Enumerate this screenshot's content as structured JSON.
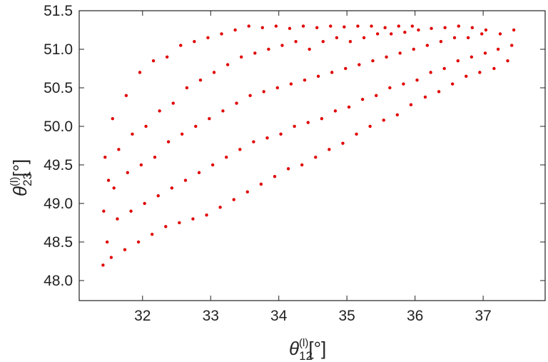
{
  "chart_data": {
    "type": "scatter",
    "xlabel": {
      "base": "θ",
      "sub": "12",
      "sup": "(l)",
      "unit": "[°]"
    },
    "ylabel": {
      "base": "θ",
      "sub": "23",
      "sup": "(l)",
      "unit": "[°]"
    },
    "color": "#e00000",
    "xlim": [
      31.07,
      37.91
    ],
    "ylim": [
      47.74,
      51.5
    ],
    "xticks": [
      32,
      33,
      34,
      35,
      36,
      37
    ],
    "yticks": [
      {
        "value": 48.0,
        "label": "48.0"
      },
      48.5,
      {
        "value": 49.0,
        "label": "49.0"
      },
      49.5,
      {
        "value": 50.0,
        "label": "50.0"
      },
      50.5,
      {
        "value": 51.0,
        "label": "51.0"
      },
      51.5
    ],
    "x": [
      31.42,
      31.48,
      31.43,
      31.5,
      31.45,
      31.54,
      31.63,
      31.58,
      31.65,
      31.56,
      31.74,
      31.83,
      31.78,
      31.85,
      31.76,
      31.94,
      32.03,
      31.98,
      32.05,
      31.96,
      32.14,
      32.23,
      32.18,
      32.25,
      32.16,
      32.34,
      32.43,
      32.38,
      32.45,
      32.36,
      32.54,
      32.63,
      32.58,
      32.65,
      32.56,
      32.74,
      32.83,
      32.78,
      32.85,
      32.76,
      32.94,
      33.03,
      32.98,
      33.05,
      32.96,
      33.14,
      33.23,
      33.18,
      33.25,
      33.16,
      33.34,
      33.43,
      33.38,
      33.45,
      33.36,
      33.54,
      33.63,
      33.58,
      33.65,
      33.56,
      33.74,
      33.83,
      33.78,
      33.85,
      33.76,
      33.94,
      34.03,
      33.98,
      34.05,
      33.96,
      34.14,
      34.23,
      34.18,
      34.25,
      34.16,
      34.34,
      34.43,
      34.38,
      34.45,
      34.36,
      34.54,
      34.63,
      34.58,
      34.65,
      34.56,
      34.74,
      34.83,
      34.78,
      34.85,
      34.76,
      34.94,
      35.03,
      34.98,
      35.05,
      34.96,
      35.14,
      35.23,
      35.18,
      35.25,
      35.16,
      35.34,
      35.43,
      35.38,
      35.45,
      35.36,
      35.54,
      35.63,
      35.58,
      35.65,
      35.56,
      35.74,
      35.83,
      35.78,
      35.85,
      35.76,
      35.94,
      36.03,
      35.98,
      36.05,
      35.96,
      36.15,
      36.23,
      36.18,
      36.24,
      36.35,
      36.43,
      36.38,
      36.44,
      36.55,
      36.63,
      36.58,
      36.64,
      36.75,
      36.83,
      36.78,
      36.84,
      36.95,
      37.03,
      36.98,
      37.04,
      37.16,
      37.22,
      37.25,
      37.36,
      37.42,
      37.45
    ],
    "values": [
      48.2,
      48.5,
      48.9,
      49.3,
      49.6,
      48.3,
      48.8,
      49.2,
      49.7,
      50.1,
      48.4,
      48.9,
      49.4,
      49.9,
      50.4,
      48.5,
      49.0,
      49.5,
      50.0,
      50.7,
      48.6,
      49.1,
      49.6,
      50.2,
      50.85,
      48.7,
      49.2,
      49.8,
      50.3,
      50.9,
      48.75,
      49.3,
      49.9,
      50.5,
      51.05,
      48.8,
      49.4,
      50.0,
      50.6,
      51.1,
      48.85,
      49.5,
      50.1,
      50.7,
      51.15,
      48.95,
      49.6,
      50.2,
      50.8,
      51.2,
      49.05,
      49.7,
      50.3,
      50.9,
      51.25,
      49.15,
      49.8,
      50.4,
      50.95,
      51.3,
      49.25,
      49.85,
      50.45,
      51.0,
      51.28,
      49.35,
      49.9,
      50.5,
      51.05,
      51.3,
      49.45,
      50.0,
      50.55,
      51.1,
      51.27,
      49.5,
      50.05,
      50.6,
      51.0,
      51.3,
      49.6,
      50.1,
      50.65,
      51.1,
      51.28,
      49.7,
      50.2,
      50.7,
      51.15,
      51.3,
      49.78,
      50.25,
      50.75,
      51.1,
      51.29,
      49.9,
      50.35,
      50.8,
      51.15,
      51.3,
      50.0,
      50.4,
      50.85,
      51.2,
      51.3,
      50.08,
      50.5,
      50.9,
      51.2,
      51.28,
      50.15,
      50.55,
      50.95,
      51.22,
      51.3,
      50.28,
      50.6,
      51.0,
      51.25,
      51.3,
      50.38,
      50.7,
      51.05,
      51.27,
      50.45,
      50.75,
      51.1,
      51.28,
      50.55,
      50.85,
      51.15,
      51.3,
      50.65,
      50.9,
      51.15,
      51.28,
      50.7,
      50.95,
      51.2,
      51.25,
      50.75,
      51.0,
      51.2,
      50.85,
      51.05,
      51.25
    ]
  }
}
